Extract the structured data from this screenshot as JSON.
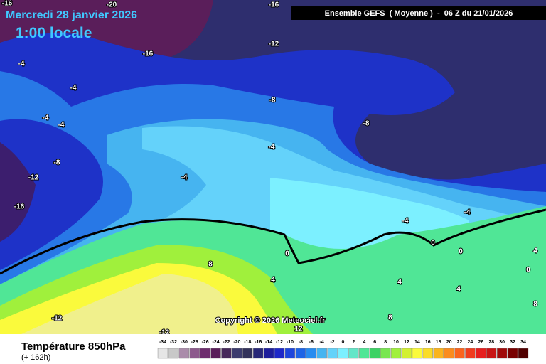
{
  "header": {
    "date": "Mercredi 28 janvier 2026",
    "time": "1:00 locale",
    "model": "Ensemble GEFS  ( Moyenne )  -  06 Z du 21/01/2026"
  },
  "map": {
    "contour_labels": [
      -16,
      -20,
      -16,
      -16,
      -12,
      -4,
      -4,
      -4,
      -4,
      -8,
      -8,
      -4,
      -8,
      -12,
      -4,
      -16,
      -4,
      -4,
      0,
      0,
      0,
      8,
      4,
      4,
      0,
      4,
      4,
      -12,
      -12,
      12,
      8,
      8
    ]
  },
  "copyright": "Copyright © 2026 Meteociel.fr",
  "footer": {
    "variable": "Température 850hPa",
    "lead": "(+ 162h)"
  },
  "legend": {
    "values": [
      -34,
      -32,
      -30,
      -28,
      -26,
      -24,
      -22,
      -20,
      -18,
      -16,
      -14,
      -12,
      -10,
      -8,
      -6,
      -4,
      -2,
      0,
      2,
      4,
      6,
      8,
      10,
      12,
      14,
      16,
      18,
      20,
      22,
      24,
      26,
      28,
      30,
      32,
      34
    ],
    "colors": [
      "#e6e6e6",
      "#c8c8c8",
      "#aa8caa",
      "#8c5a8c",
      "#6e2d6e",
      "#5a1e5a",
      "#46285a",
      "#3c3c6e",
      "#32325a",
      "#282878",
      "#1e1e9b",
      "#1e28c8",
      "#1e46dc",
      "#1e64e6",
      "#288cf0",
      "#46b4f0",
      "#64d2fa",
      "#7cf0ff",
      "#64e6c8",
      "#50e696",
      "#3cd264",
      "#78e650",
      "#a0f03c",
      "#d2f032",
      "#fafa3c",
      "#fadc28",
      "#fab41e",
      "#fa8c1e",
      "#fa641e",
      "#f03c1e",
      "#e61e1e",
      "#c81414",
      "#a00a0a",
      "#780000",
      "#500000"
    ]
  }
}
